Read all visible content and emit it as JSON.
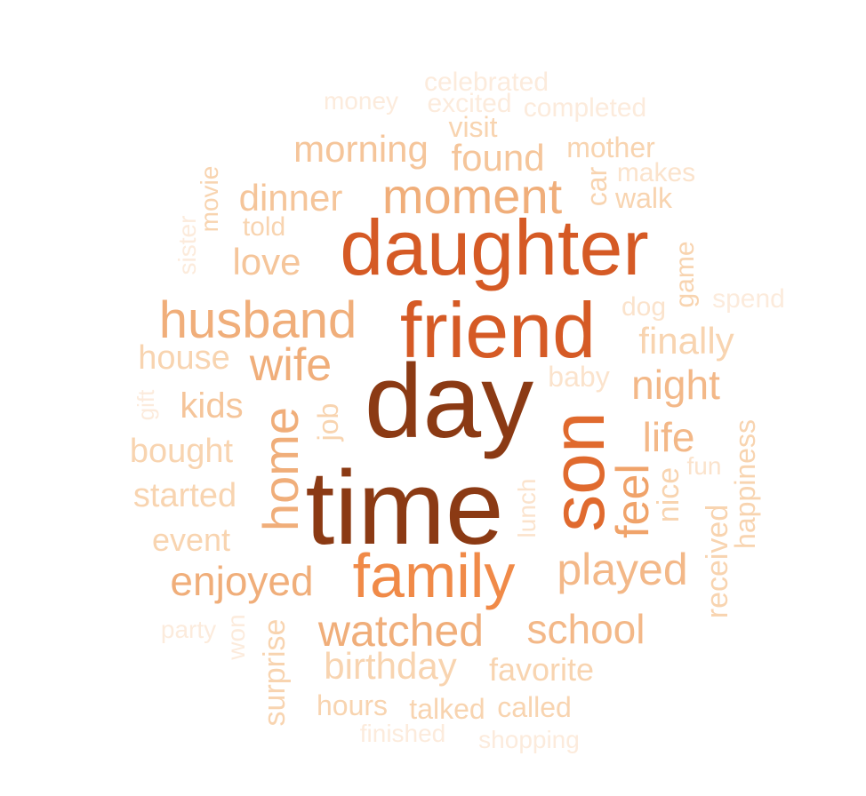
{
  "words": [
    {
      "text": "day",
      "color": "#8B3A14"
    },
    {
      "text": "time",
      "color": "#8B3A14"
    },
    {
      "text": "daughter",
      "color": "#D55A25"
    },
    {
      "text": "friend",
      "color": "#D55A25"
    },
    {
      "text": "son",
      "color": "#E06A2E"
    },
    {
      "text": "family",
      "color": "#F08A48"
    },
    {
      "text": "husband",
      "color": "#F0AE7A"
    },
    {
      "text": "moment",
      "color": "#F0AE7A"
    },
    {
      "text": "wife",
      "color": "#F0AE7A"
    },
    {
      "text": "home",
      "color": "#F0AE7A"
    },
    {
      "text": "feel",
      "color": "#F0A36A"
    },
    {
      "text": "morning",
      "color": "#F5C59A"
    },
    {
      "text": "found",
      "color": "#F5C59A"
    },
    {
      "text": "dinner",
      "color": "#F5C59A"
    },
    {
      "text": "love",
      "color": "#F5C59A"
    },
    {
      "text": "finally",
      "color": "#F8D4B0"
    },
    {
      "text": "night",
      "color": "#F3B888"
    },
    {
      "text": "life",
      "color": "#F3B888"
    },
    {
      "text": "played",
      "color": "#F3B888"
    },
    {
      "text": "watched",
      "color": "#F0AE7A"
    },
    {
      "text": "school",
      "color": "#F3B888"
    },
    {
      "text": "enjoyed",
      "color": "#F0AE7A"
    },
    {
      "text": "birthday",
      "color": "#F8D4B0"
    },
    {
      "text": "favorite",
      "color": "#F8D4B0"
    },
    {
      "text": "kids",
      "color": "#F5C59A"
    },
    {
      "text": "house",
      "color": "#F8D4B0"
    },
    {
      "text": "bought",
      "color": "#F8D4B0"
    },
    {
      "text": "started",
      "color": "#F8D4B0"
    },
    {
      "text": "event",
      "color": "#F8D4B0"
    },
    {
      "text": "job",
      "color": "#F8D4B0"
    },
    {
      "text": "nice",
      "color": "#F8D4B0"
    },
    {
      "text": "fun",
      "color": "#FBE3CC"
    },
    {
      "text": "happiness",
      "color": "#F8D4B0"
    },
    {
      "text": "received",
      "color": "#F8D4B0"
    },
    {
      "text": "hours",
      "color": "#F8D4B0"
    },
    {
      "text": "talked",
      "color": "#F8D4B0"
    },
    {
      "text": "called",
      "color": "#F8D4B0"
    },
    {
      "text": "surprise",
      "color": "#F8D4B0"
    },
    {
      "text": "mother",
      "color": "#F8D4B0"
    },
    {
      "text": "makes",
      "color": "#FBE3CC"
    },
    {
      "text": "walk",
      "color": "#F8D4B0"
    },
    {
      "text": "car",
      "color": "#F8D4B0"
    },
    {
      "text": "visit",
      "color": "#F8D4B0"
    },
    {
      "text": "told",
      "color": "#F8D4B0"
    },
    {
      "text": "movie",
      "color": "#F8D4B0"
    },
    {
      "text": "game",
      "color": "#F8D4B0"
    },
    {
      "text": "dog",
      "color": "#FBE3CC"
    },
    {
      "text": "spend",
      "color": "#FCEBDC"
    },
    {
      "text": "baby",
      "color": "#FBE3CC"
    },
    {
      "text": "lunch",
      "color": "#FBE3CC"
    },
    {
      "text": "celebrated",
      "color": "#FCEBDC"
    },
    {
      "text": "excited",
      "color": "#FCEBDC"
    },
    {
      "text": "completed",
      "color": "#FCEBDC"
    },
    {
      "text": "money",
      "color": "#FCEBDC"
    },
    {
      "text": "sister",
      "color": "#FCEBDC"
    },
    {
      "text": "gift",
      "color": "#FCEBDC"
    },
    {
      "text": "party",
      "color": "#FCEBDC"
    },
    {
      "text": "won",
      "color": "#FCEBDC"
    },
    {
      "text": "finished",
      "color": "#FCEBDC"
    },
    {
      "text": "shopping",
      "color": "#FCEBDC"
    }
  ]
}
